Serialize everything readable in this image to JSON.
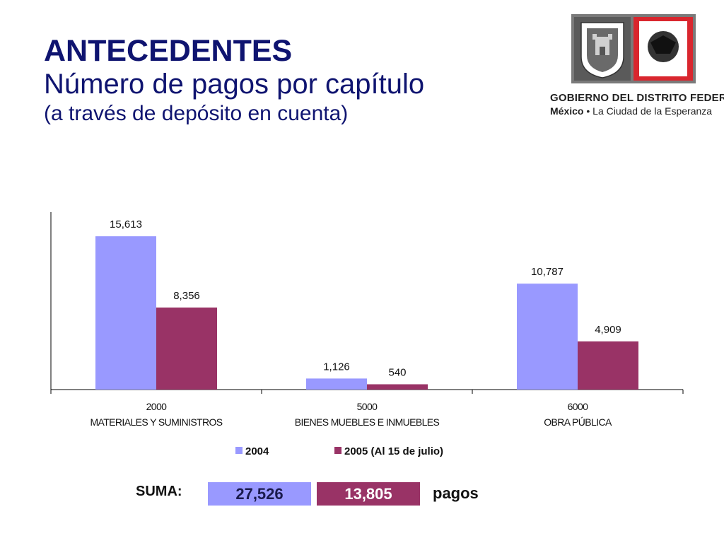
{
  "slide": {
    "title": "ANTECEDENTES",
    "subtitle": "Número de pagos por capítulo",
    "note": "(a través de depósito en cuenta)"
  },
  "logo": {
    "org_name": "GOBIERNO DEL DISTRITO FEDERAL",
    "motto_bold": "México",
    "motto_sep": " • ",
    "motto_rest": "La Ciudad de la Esperanza",
    "colors": {
      "frame": "#7a7a7a",
      "panel": "#d9262e",
      "shield": "#555555"
    }
  },
  "chart_data": {
    "type": "bar",
    "categories": [
      [
        "2000",
        "MATERIALES Y SUMINISTROS"
      ],
      [
        "5000",
        "BIENES MUEBLES E INMUEBLES"
      ],
      [
        "6000",
        "OBRA PÚBLICA"
      ]
    ],
    "series": [
      {
        "name": "2004",
        "values": [
          15613,
          1126,
          10787
        ],
        "labels": [
          "15,613",
          "1,126",
          "10,787"
        ],
        "color": "#9999ff"
      },
      {
        "name": "2005 (Al 15 de julio)",
        "values": [
          8356,
          540,
          4909
        ],
        "labels": [
          "8,356",
          "540",
          "4,909"
        ],
        "color": "#993366"
      }
    ],
    "ylim": [
      0,
      18000
    ],
    "legend": "bottom",
    "grid": false
  },
  "summary": {
    "label": "SUMA:",
    "total_2004": "27,526",
    "total_2005": "13,805",
    "unit": "pagos"
  }
}
